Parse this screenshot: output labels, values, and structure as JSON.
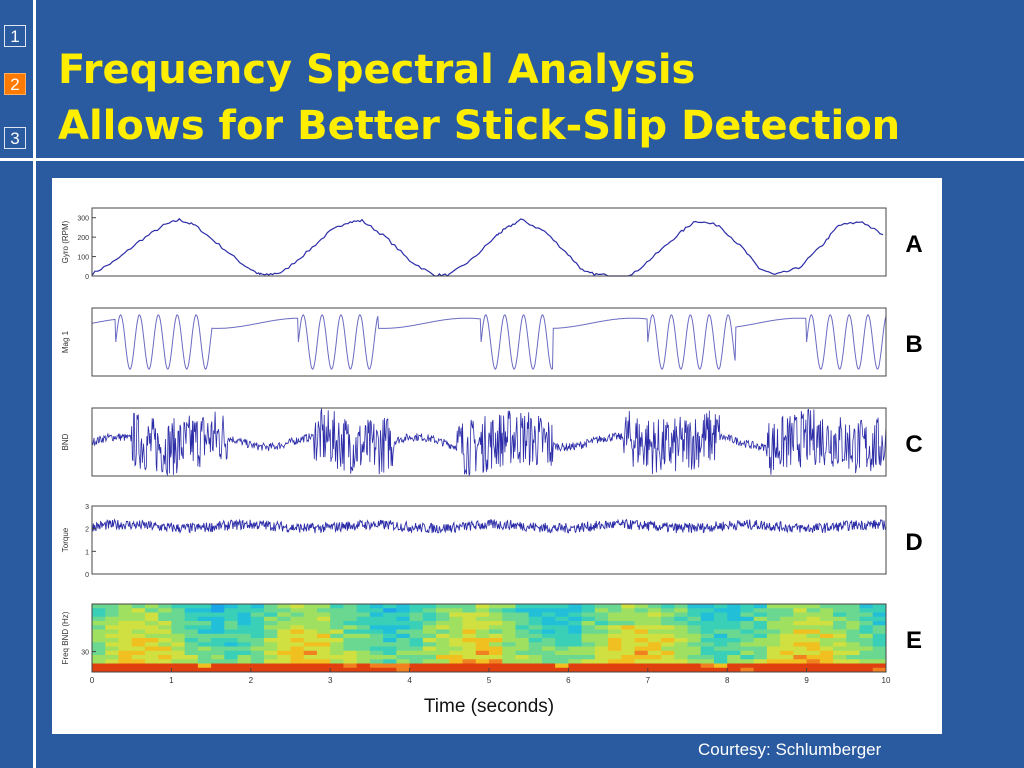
{
  "nav": {
    "items": [
      "1",
      "2",
      "3"
    ],
    "active_index": 1
  },
  "title": {
    "line1": "Frequency Spectral Analysis",
    "line2": "Allows for Better Stick-Slip Detection"
  },
  "courtesy": "Courtesy: Schlumberger",
  "colors": {
    "background": "#2a5aa0",
    "title": "#ffee00",
    "signal": "#2c2ca8",
    "active_nav": "#ff7a00"
  },
  "chart_data": {
    "type": "line",
    "xlabel": "Time (seconds)",
    "xlim": [
      0,
      10
    ],
    "x_ticks": [
      "0",
      "1",
      "2",
      "3",
      "4",
      "5",
      "6",
      "7",
      "8",
      "9",
      "10"
    ],
    "panels": [
      {
        "letter": "A",
        "ylabel": "Gyro (RPM)",
        "ylim": [
          0,
          350
        ],
        "y_ticks": [
          "300",
          "200",
          "100",
          "0"
        ],
        "y_tick_values": [
          300,
          200,
          100,
          0
        ],
        "x": [
          0,
          0.3,
          0.6,
          0.9,
          1.1,
          1.3,
          1.6,
          1.9,
          2.1,
          2.2,
          2.4,
          2.7,
          3.0,
          3.2,
          3.4,
          3.7,
          4.0,
          4.3,
          4.5,
          4.8,
          5.1,
          5.2,
          5.4,
          5.7,
          6.0,
          6.2,
          6.4,
          6.8,
          7.1,
          7.4,
          7.6,
          7.9,
          8.2,
          8.4,
          8.6,
          8.9,
          9.2,
          9.4,
          9.7,
          10.0
        ],
        "y": [
          10,
          80,
          180,
          260,
          290,
          260,
          160,
          60,
          10,
          5,
          20,
          120,
          230,
          275,
          285,
          200,
          80,
          5,
          5,
          90,
          210,
          240,
          290,
          230,
          110,
          20,
          5,
          5,
          110,
          220,
          285,
          260,
          140,
          40,
          5,
          40,
          160,
          260,
          280,
          200
        ]
      },
      {
        "letter": "B",
        "ylabel": "Mag 1",
        "ylim": [
          -1,
          1
        ],
        "y_ticks": [],
        "y_tick_values": [],
        "oscillation_bursts_s": [
          [
            0.3,
            1.5
          ],
          [
            2.6,
            3.6
          ],
          [
            4.9,
            5.8
          ],
          [
            7.0,
            8.1
          ],
          [
            9.0,
            10.0
          ]
        ]
      },
      {
        "letter": "C",
        "ylabel": "BND",
        "ylim": [
          -1,
          1
        ],
        "y_ticks": [],
        "y_tick_values": [],
        "noisy_bursts_s": [
          [
            0.5,
            1.7
          ],
          [
            2.8,
            3.8
          ],
          [
            4.6,
            5.8
          ],
          [
            6.7,
            7.9
          ],
          [
            8.5,
            10.0
          ]
        ]
      },
      {
        "letter": "D",
        "ylabel": "Torque",
        "ylim": [
          0,
          3
        ],
        "y_ticks": [
          "3",
          "2",
          "1",
          "0"
        ],
        "y_tick_values": [
          3,
          2,
          1,
          0
        ],
        "mean_level": 2.1
      },
      {
        "letter": "E",
        "ylabel": "Freq BND (Hz)",
        "ylim": [
          0,
          100
        ],
        "y_ticks": [
          "30"
        ],
        "y_tick_values": [
          30
        ],
        "spectrogram": true
      }
    ]
  }
}
